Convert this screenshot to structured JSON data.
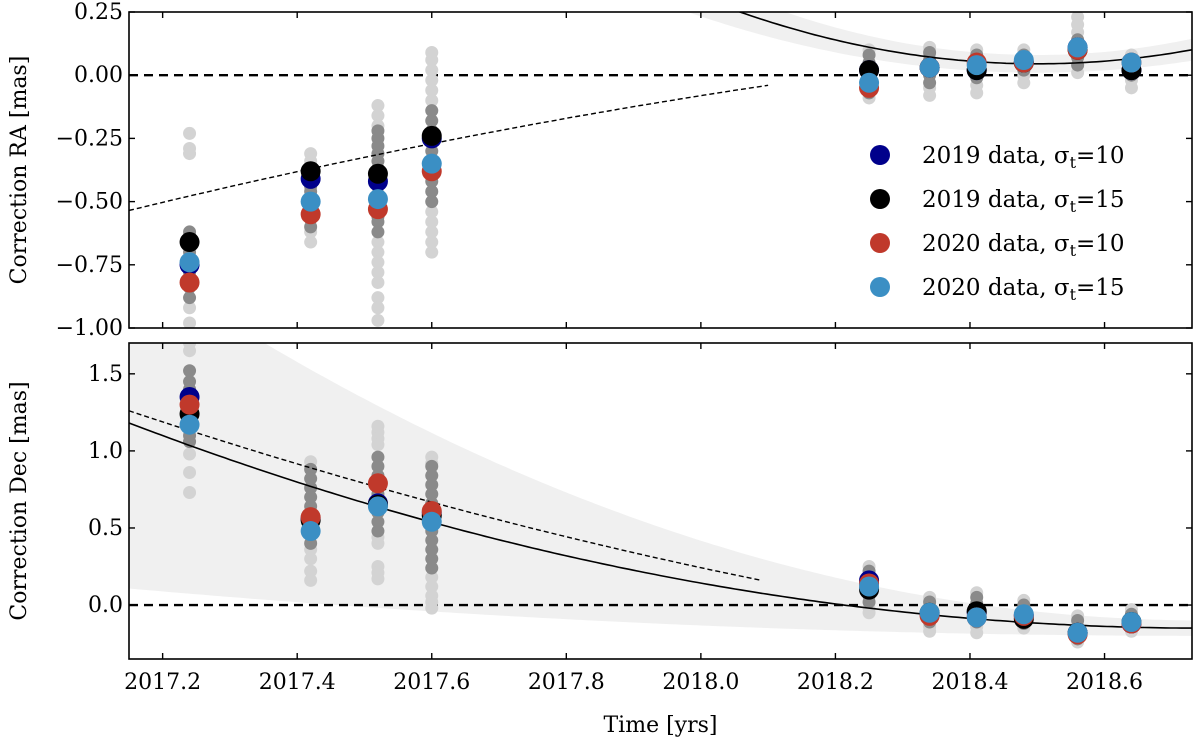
{
  "chart_data": [
    {
      "type": "scatter",
      "panel": "top",
      "ylabel": "Correction RA [mas]",
      "xlim": [
        2017.15,
        2018.73
      ],
      "ylim": [
        -1.0,
        0.25
      ],
      "yticks": [
        0.25,
        0.0,
        -0.25,
        -0.5,
        -0.75,
        -1.0
      ],
      "ytick_labels": [
        "0.25",
        "0.00",
        "−0.25",
        "−0.50",
        "−0.75",
        "−1.00"
      ],
      "zero_line": 0.0,
      "legend_placement": "center-right",
      "series": [
        {
          "name": "2019 data, σt=10",
          "legend": "2019 data, σ",
          "sub": "t",
          "eq": "=10",
          "color": "#00008b",
          "points": [
            [
              2017.24,
              -0.75
            ],
            [
              2017.42,
              -0.41
            ],
            [
              2017.52,
              -0.42
            ],
            [
              2017.6,
              -0.25
            ],
            [
              2018.25,
              0.02
            ],
            [
              2018.34,
              0.03
            ],
            [
              2018.41,
              0.02
            ],
            [
              2018.48,
              0.05
            ],
            [
              2018.56,
              0.11
            ],
            [
              2018.64,
              0.02
            ]
          ]
        },
        {
          "name": "2019 data, σt=15",
          "legend": "2019 data, σ",
          "sub": "t",
          "eq": "=15",
          "color": "#000000",
          "points": [
            [
              2017.24,
              -0.66
            ],
            [
              2017.42,
              -0.38
            ],
            [
              2017.52,
              -0.39
            ],
            [
              2017.6,
              -0.24
            ],
            [
              2018.25,
              0.02
            ],
            [
              2018.34,
              0.03
            ],
            [
              2018.41,
              0.02
            ],
            [
              2018.48,
              0.05
            ],
            [
              2018.56,
              0.1
            ],
            [
              2018.64,
              0.02
            ]
          ]
        },
        {
          "name": "2020 data, σt=10",
          "legend": "2020 data, σ",
          "sub": "t",
          "eq": "=10",
          "color": "#c0392b",
          "points": [
            [
              2017.24,
              -0.82
            ],
            [
              2017.42,
              -0.55
            ],
            [
              2017.52,
              -0.53
            ],
            [
              2017.6,
              -0.38
            ],
            [
              2018.25,
              -0.05
            ],
            [
              2018.34,
              0.03
            ],
            [
              2018.41,
              0.05
            ],
            [
              2018.48,
              0.05
            ],
            [
              2018.56,
              0.1
            ],
            [
              2018.64,
              0.05
            ]
          ]
        },
        {
          "name": "2020 data, σt=15",
          "legend": "2020 data, σ",
          "sub": "t",
          "eq": "=15",
          "color": "#3b8fc4",
          "points": [
            [
              2017.24,
              -0.74
            ],
            [
              2017.42,
              -0.5
            ],
            [
              2017.52,
              -0.49
            ],
            [
              2017.6,
              -0.35
            ],
            [
              2018.25,
              -0.03
            ],
            [
              2018.34,
              0.03
            ],
            [
              2018.41,
              0.04
            ],
            [
              2018.48,
              0.06
            ],
            [
              2018.56,
              0.11
            ],
            [
              2018.64,
              0.05
            ]
          ]
        }
      ],
      "individual_points": [
        {
          "x": 2017.24,
          "dark": [
            -0.62,
            -0.64,
            -0.66,
            -0.68,
            -0.7,
            -0.72,
            -0.76,
            -0.78,
            -0.8,
            -0.84,
            -0.88
          ],
          "light": [
            -0.23,
            -0.29,
            -0.31,
            -0.92,
            -0.98
          ]
        },
        {
          "x": 2017.42,
          "dark": [
            -0.38,
            -0.4,
            -0.42,
            -0.44,
            -0.46,
            -0.5,
            -0.52,
            -0.54,
            -0.57,
            -0.6
          ],
          "light": [
            -0.31,
            -0.34,
            -0.36,
            -0.62,
            -0.66
          ]
        },
        {
          "x": 2017.52,
          "dark": [
            -0.22,
            -0.25,
            -0.28,
            -0.31,
            -0.34,
            -0.37,
            -0.4,
            -0.44,
            -0.47,
            -0.5,
            -0.53,
            -0.56,
            -0.58,
            -0.62
          ],
          "light": [
            -0.12,
            -0.16,
            -0.2,
            -0.66,
            -0.7,
            -0.74,
            -0.78,
            -0.82,
            -0.88,
            -0.92,
            -0.97
          ]
        },
        {
          "x": 2017.6,
          "dark": [
            -0.14,
            -0.18,
            -0.22,
            -0.26,
            -0.3,
            -0.34,
            -0.38,
            -0.42,
            -0.46,
            -0.5
          ],
          "light": [
            0.09,
            0.06,
            0.02,
            -0.02,
            -0.06,
            -0.1,
            -0.54,
            -0.58,
            -0.62,
            -0.66,
            -0.7
          ]
        },
        {
          "x": 2018.25,
          "dark": [
            0.08,
            0.05,
            0.02,
            -0.01,
            -0.04,
            -0.07
          ],
          "light": [
            0.1,
            -0.09
          ]
        },
        {
          "x": 2018.34,
          "dark": [
            0.09,
            0.06,
            0.03,
            0.0,
            -0.03
          ],
          "light": [
            0.11,
            0.08,
            -0.05,
            -0.08
          ]
        },
        {
          "x": 2018.41,
          "dark": [
            0.08,
            0.05,
            0.02,
            -0.01
          ],
          "light": [
            0.1,
            -0.04,
            -0.07
          ]
        },
        {
          "x": 2018.48,
          "dark": [
            0.08,
            0.05,
            0.02
          ],
          "light": [
            0.1,
            0.0,
            -0.03
          ]
        },
        {
          "x": 2018.56,
          "dark": [
            0.14,
            0.1,
            0.07,
            0.04
          ],
          "light": [
            0.23,
            0.2,
            0.17,
            0.01
          ]
        },
        {
          "x": 2018.64,
          "dark": [
            0.06,
            0.03,
            0.0
          ],
          "light": [
            0.08,
            -0.02,
            -0.05
          ]
        }
      ],
      "fit_solid": {
        "x0": 2018.5,
        "a": 0.045,
        "b": 1.05
      },
      "fit_dashed": {
        "x_range": [
          2017.15,
          2018.1
        ],
        "y_start": -0.535,
        "y_end": -0.04
      },
      "band_halfwidth": {
        "a": 0.035,
        "b": 0.16
      }
    },
    {
      "type": "scatter",
      "panel": "bottom",
      "ylabel": "Correction Dec [mas]",
      "xlabel": "Time [yrs]",
      "xlim": [
        2017.15,
        2018.73
      ],
      "ylim": [
        -0.35,
        1.7
      ],
      "xticks": [
        2017.2,
        2017.4,
        2017.6,
        2017.8,
        2018.0,
        2018.2,
        2018.4,
        2018.6
      ],
      "xtick_labels": [
        "2017.2",
        "2017.4",
        "2017.6",
        "2017.8",
        "2018.0",
        "2018.2",
        "2018.4",
        "2018.6"
      ],
      "yticks": [
        1.5,
        1.0,
        0.5,
        0.0
      ],
      "ytick_labels": [
        "1.5",
        "1.0",
        "0.5",
        "0.0"
      ],
      "zero_line": 0.0,
      "series": [
        {
          "name": "2019 data, σt=10",
          "color": "#00008b",
          "points": [
            [
              2017.24,
              1.35
            ],
            [
              2017.42,
              0.56
            ],
            [
              2017.52,
              0.66
            ],
            [
              2017.6,
              0.6
            ],
            [
              2018.25,
              0.16
            ],
            [
              2018.34,
              -0.06
            ],
            [
              2018.41,
              -0.05
            ],
            [
              2018.48,
              -0.07
            ],
            [
              2018.56,
              -0.18
            ],
            [
              2018.64,
              -0.12
            ]
          ]
        },
        {
          "name": "2019 data, σt=15",
          "color": "#000000",
          "points": [
            [
              2017.24,
              1.24
            ],
            [
              2017.42,
              0.55
            ],
            [
              2017.52,
              0.65
            ],
            [
              2017.6,
              0.58
            ],
            [
              2018.25,
              0.1
            ],
            [
              2018.34,
              -0.05
            ],
            [
              2018.41,
              -0.04
            ],
            [
              2018.48,
              -0.09
            ],
            [
              2018.56,
              -0.18
            ],
            [
              2018.64,
              -0.11
            ]
          ]
        },
        {
          "name": "2020 data, σt=10",
          "color": "#c0392b",
          "points": [
            [
              2017.24,
              1.3
            ],
            [
              2017.42,
              0.57
            ],
            [
              2017.52,
              0.79
            ],
            [
              2017.6,
              0.61
            ],
            [
              2018.25,
              0.14
            ],
            [
              2018.34,
              -0.07
            ],
            [
              2018.41,
              -0.08
            ],
            [
              2018.48,
              -0.07
            ],
            [
              2018.56,
              -0.19
            ],
            [
              2018.64,
              -0.12
            ]
          ]
        },
        {
          "name": "2020 data, σt=15",
          "color": "#3b8fc4",
          "points": [
            [
              2017.24,
              1.17
            ],
            [
              2017.42,
              0.48
            ],
            [
              2017.52,
              0.64
            ],
            [
              2017.6,
              0.54
            ],
            [
              2018.25,
              0.12
            ],
            [
              2018.34,
              -0.05
            ],
            [
              2018.41,
              -0.08
            ],
            [
              2018.48,
              -0.06
            ],
            [
              2018.56,
              -0.18
            ],
            [
              2018.64,
              -0.11
            ]
          ]
        }
      ],
      "individual_points": [
        {
          "x": 2017.24,
          "dark": [
            1.52,
            1.45,
            1.4,
            1.34,
            1.3,
            1.26,
            1.22,
            1.18,
            1.14,
            1.1,
            1.06
          ],
          "light": [
            1.7,
            1.65,
            0.98,
            0.86,
            0.73
          ]
        },
        {
          "x": 2017.42,
          "dark": [
            0.88,
            0.82,
            0.76,
            0.7,
            0.64,
            0.58,
            0.52,
            0.46,
            0.4
          ],
          "light": [
            0.93,
            0.36,
            0.3,
            0.22,
            0.16
          ]
        },
        {
          "x": 2017.52,
          "dark": [
            0.96,
            0.9,
            0.84,
            0.78,
            0.72,
            0.66,
            0.6,
            0.54,
            0.48
          ],
          "light": [
            1.16,
            1.12,
            1.08,
            1.04,
            0.44,
            0.4,
            0.25,
            0.21,
            0.17
          ]
        },
        {
          "x": 2017.6,
          "dark": [
            0.9,
            0.84,
            0.78,
            0.72,
            0.66,
            0.6,
            0.54,
            0.48,
            0.42,
            0.36,
            0.3,
            0.24
          ],
          "light": [
            0.96,
            0.92,
            0.18,
            0.12,
            0.06,
            0.02,
            -0.02
          ]
        },
        {
          "x": 2018.25,
          "dark": [
            0.22,
            0.18,
            0.14,
            0.1,
            0.06,
            0.02
          ],
          "light": [
            0.25,
            -0.02,
            -0.05
          ]
        },
        {
          "x": 2018.34,
          "dark": [
            0.02,
            -0.02,
            -0.05,
            -0.08,
            -0.11
          ],
          "light": [
            0.05,
            -0.14,
            -0.17
          ]
        },
        {
          "x": 2018.41,
          "dark": [
            0.05,
            0.01,
            -0.03,
            -0.07,
            -0.11
          ],
          "light": [
            0.08,
            -0.14,
            -0.18
          ]
        },
        {
          "x": 2018.48,
          "dark": [
            0.0,
            -0.04,
            -0.08,
            -0.12
          ],
          "light": [
            0.03,
            -0.15
          ]
        },
        {
          "x": 2018.56,
          "dark": [
            -0.1,
            -0.14,
            -0.18,
            -0.22
          ],
          "light": [
            -0.07,
            -0.24
          ]
        },
        {
          "x": 2018.64,
          "dark": [
            -0.06,
            -0.1,
            -0.14
          ],
          "light": [
            -0.03,
            -0.17
          ]
        }
      ],
      "fit_solid": {
        "x0": 2018.75,
        "a": -0.15,
        "b": 0.52
      },
      "fit_dashed": {
        "x_range": [
          2017.15,
          2018.09
        ],
        "y_start": 1.26,
        "y_end": 0.16
      },
      "band_halfwidth": {
        "a": 0.05,
        "b": 0.4
      }
    }
  ]
}
